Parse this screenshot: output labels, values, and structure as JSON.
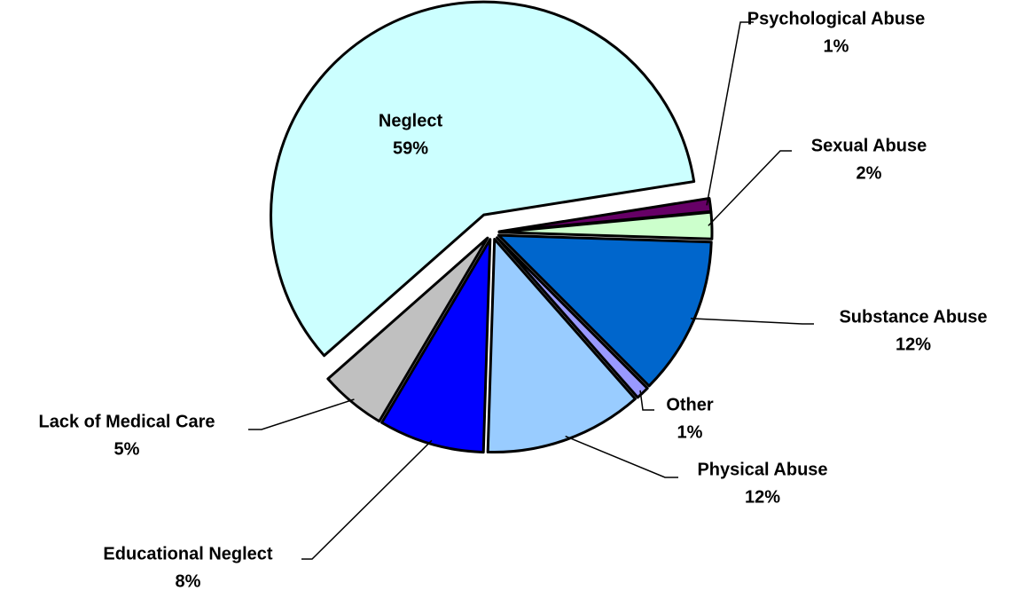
{
  "chart_data": {
    "type": "pie",
    "categories": [
      "Psychological Abuse",
      "Sexual Abuse",
      "Substance Abuse",
      "Other",
      "Physical Abuse",
      "Educational Neglect",
      "Lack of Medical Care",
      "Neglect"
    ],
    "values": [
      1,
      2,
      12,
      1,
      12,
      8,
      5,
      59
    ],
    "value_labels": [
      "1%",
      "2%",
      "12%",
      "1%",
      "12%",
      "8%",
      "5%",
      "59%"
    ],
    "colors": [
      "#660066",
      "#ccffcc",
      "#0066cc",
      "#9999ff",
      "#99ccff",
      "#0000ff",
      "#c0c0c0",
      "#ccffff"
    ]
  }
}
